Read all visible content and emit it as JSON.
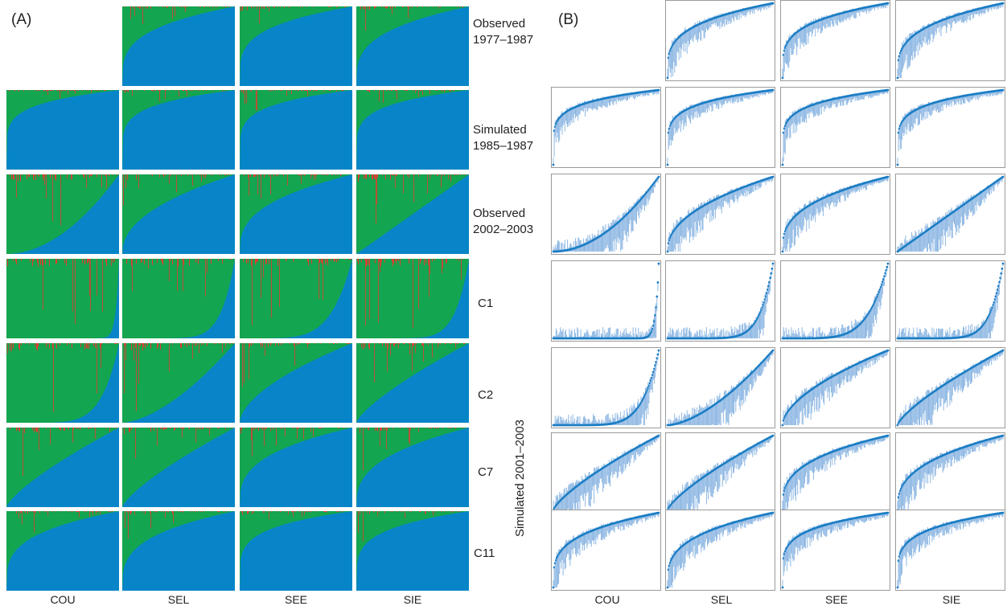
{
  "panels": {
    "a": "(A)",
    "b": "(B)"
  },
  "columns": [
    "COU",
    "SEL",
    "SEE",
    "SIE"
  ],
  "rows": [
    {
      "line1": "Observed",
      "line2": "1977–1987"
    },
    {
      "line1": "Simulated",
      "line2": "1985–1987"
    },
    {
      "line1": "Observed",
      "line2": "2002–2003"
    },
    {
      "line1": "C1",
      "line2": ""
    },
    {
      "line1": "C2",
      "line2": ""
    },
    {
      "line1": "C7",
      "line2": ""
    },
    {
      "line1": "C11",
      "line2": ""
    }
  ],
  "side_label": "Simulated 2001–2003",
  "colors": {
    "blue": "#0785c8",
    "green": "#14a550",
    "red": "#e23a2f",
    "err": "#8fb8e3",
    "point": "#1a7dc4"
  },
  "chart_data": [
    {
      "type": "area",
      "panel": "(A)",
      "description_note": "Stacked ancestry proportions (blue/green/red) per sorted individual, by population column and scenario row",
      "columns": [
        "COU",
        "SEL",
        "SEE",
        "SIE"
      ],
      "rows": [
        "Observed 1977–1987",
        "Simulated 1985–1987",
        "Observed 2002–2003",
        "C1",
        "C2",
        "C7",
        "C11"
      ],
      "blue_median_fraction": [
        [
          null,
          0.92,
          0.94,
          0.9
        ],
        [
          0.99,
          0.98,
          0.98,
          0.98
        ],
        [
          0.3,
          0.78,
          0.86,
          0.5
        ],
        [
          0.02,
          0.08,
          0.12,
          0.08
        ],
        [
          0.1,
          0.35,
          0.7,
          0.6
        ],
        [
          0.6,
          0.6,
          0.88,
          0.85
        ],
        [
          0.92,
          0.9,
          0.97,
          0.96
        ]
      ]
    },
    {
      "type": "scatter",
      "panel": "(B)",
      "columns": [
        "COU",
        "SEL",
        "SEE",
        "SIE"
      ],
      "rows": [
        "Observed 1977–1987",
        "Simulated 1985–1987",
        "Observed 2002–2003",
        "C1",
        "C2",
        "C7",
        "C11"
      ],
      "ylim": [
        0,
        1
      ]
    }
  ]
}
